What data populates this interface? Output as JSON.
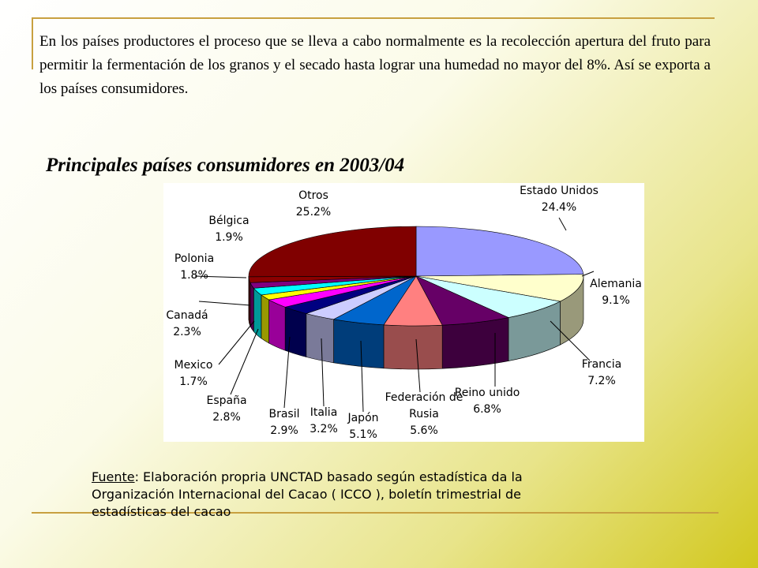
{
  "intro": "En los países productores el proceso que se lleva  a cabo normalmente es la recolección apertura del fruto para permitir la fermentación de los granos y el secado hasta  lograr una humedad no mayor del 8%. Así se exporta  a los  países  consumidores.",
  "chart_data": {
    "type": "pie",
    "title": "Principales países consumidores en 2003/04",
    "categories": [
      "Estado Unidos",
      "Alemania",
      "Francia",
      "Reino unido",
      "Federación de Rusia",
      "Japón",
      "Italia",
      "Brasil",
      "España",
      "Mexico",
      "Canadá",
      "Polonia",
      "Bélgica",
      "Otros"
    ],
    "values": [
      24.4,
      9.1,
      7.2,
      6.8,
      5.6,
      5.1,
      3.2,
      2.9,
      2.8,
      1.7,
      2.3,
      1.8,
      1.9,
      25.2
    ],
    "value_labels": [
      "24.4%",
      "9.1%",
      "7.2%",
      "6.8%",
      "5.6%",
      "5.1%",
      "3.2%",
      "2.9%",
      "2.8%",
      "1.7%",
      "2.3%",
      "1.8%",
      "1.9%",
      "25.2%"
    ],
    "colors": [
      "#9999ff",
      "#ffffcc",
      "#ccffff",
      "#660066",
      "#ff8080",
      "#0066cc",
      "#ccccff",
      "#000080",
      "#ff00ff",
      "#ffff00",
      "#00ffff",
      "#800080",
      "#8b0000",
      "#800000"
    ]
  },
  "source": {
    "label": "Fuente",
    "text": ": Elaboración propria UNCTAD basado según estadística da la Organización Internacional del Cacao ( ICCO ), boletín trimestrial de estadísticas del cacao"
  }
}
